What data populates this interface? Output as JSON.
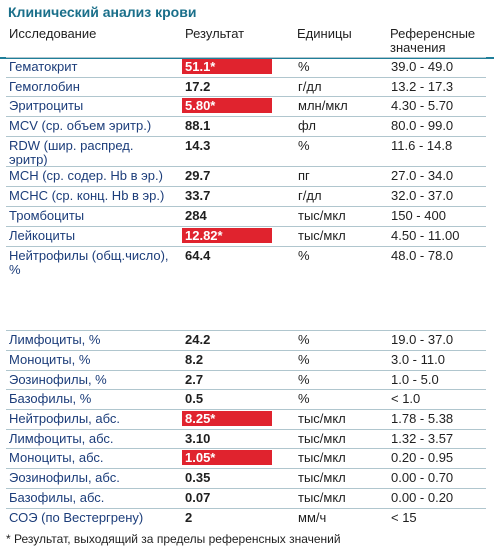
{
  "title": "Клинический анализ крови",
  "headers": {
    "name": "Исследование",
    "result": "Результат",
    "units": "Единицы",
    "reference_line1": "Референсные",
    "reference_line2": "значения"
  },
  "rows": [
    {
      "name": "Гематокрит",
      "result": "51.1*",
      "unit": "%",
      "ref": "39.0 - 49.0",
      "flag": true
    },
    {
      "name": "Гемоглобин",
      "result": "17.2",
      "unit": "г/дл",
      "ref": "13.2 - 17.3",
      "flag": false
    },
    {
      "name": "Эритроциты",
      "result": "5.80*",
      "unit": "млн/мкл",
      "ref": "4.30 - 5.70",
      "flag": true
    },
    {
      "name": "MCV (ср. объем эритр.)",
      "result": "88.1",
      "unit": "фл",
      "ref": "80.0 - 99.0",
      "flag": false
    },
    {
      "name": "RDW (шир. распред. эритр)",
      "result": "14.3",
      "unit": "%",
      "ref": "11.6 - 14.8",
      "flag": false
    },
    {
      "name": "MCH (ср. содер. Hb в эр.)",
      "result": "29.7",
      "unit": "пг",
      "ref": "27.0 - 34.0",
      "flag": false
    },
    {
      "name": "MCHC (ср. конц. Hb в эр.)",
      "result": "33.7",
      "unit": "г/дл",
      "ref": "32.0 - 37.0",
      "flag": false
    },
    {
      "name": "Тромбоциты",
      "result": "284",
      "unit": "тыс/мкл",
      "ref": "150 - 400",
      "flag": false
    },
    {
      "name": "Лейкоциты",
      "result": "12.82*",
      "unit": "тыс/мкл",
      "ref": "4.50 - 11.00",
      "flag": true
    },
    {
      "name": "Нейтрофилы (общ.число), %",
      "result": "64.4",
      "unit": "%",
      "ref": "48.0 - 78.0",
      "flag": false
    },
    {
      "name": "Лимфоциты, %",
      "result": "24.2",
      "unit": "%",
      "ref": "19.0 - 37.0",
      "flag": false
    },
    {
      "name": "Моноциты, %",
      "result": "8.2",
      "unit": "%",
      "ref": "3.0 - 11.0",
      "flag": false
    },
    {
      "name": "Эозинофилы, %",
      "result": "2.7",
      "unit": "%",
      "ref": "1.0 - 5.0",
      "flag": false
    },
    {
      "name": "Базофилы, %",
      "result": "0.5",
      "unit": "%",
      "ref": "< 1.0",
      "flag": false
    },
    {
      "name": "Нейтрофилы, абс.",
      "result": "8.25*",
      "unit": "тыс/мкл",
      "ref": "1.78 - 5.38",
      "flag": true
    },
    {
      "name": "Лимфоциты, абс.",
      "result": "3.10",
      "unit": "тыс/мкл",
      "ref": "1.32 - 3.57",
      "flag": false
    },
    {
      "name": "Моноциты, абс.",
      "result": "1.05*",
      "unit": "тыс/мкл",
      "ref": "0.20 - 0.95",
      "flag": true
    },
    {
      "name": "Эозинофилы, абс.",
      "result": "0.35",
      "unit": "тыс/мкл",
      "ref": "0.00 - 0.70",
      "flag": false
    },
    {
      "name": "Базофилы, абс.",
      "result": "0.07",
      "unit": "тыс/мкл",
      "ref": "0.00 - 0.20",
      "flag": false
    },
    {
      "name": "СОЭ (по Вестергрену)",
      "result": "2",
      "unit": "мм/ч",
      "ref": "< 15",
      "flag": false
    }
  ],
  "footnote": "* Результат, выходящий за пределы референсных значений"
}
